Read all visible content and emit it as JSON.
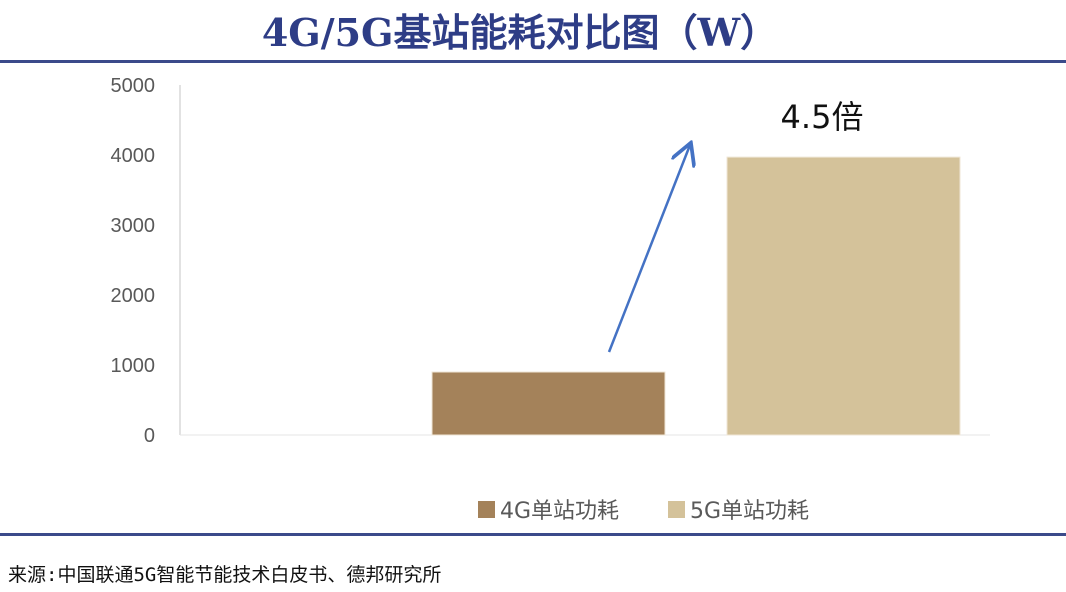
{
  "title": "4G/5G基站能耗对比图（W）",
  "source": "来源:中国联通5G智能节能技术白皮书、德邦研究所",
  "chart_data": {
    "type": "bar",
    "title": "4G/5G基站能耗对比图（W）",
    "ylim": [
      0,
      5000
    ],
    "yticks": [
      0,
      1000,
      2000,
      3000,
      4000,
      5000
    ],
    "grid": false,
    "legend_position": "bottom",
    "series": [
      {
        "name": "4G单站功耗",
        "values": [
          900
        ],
        "color": "#a4825a"
      },
      {
        "name": "5G单站功耗",
        "values": [
          3970
        ],
        "color": "#d4c29a"
      }
    ],
    "annotation": {
      "text": "4.5倍",
      "arrow_color": "#4472c4"
    }
  }
}
